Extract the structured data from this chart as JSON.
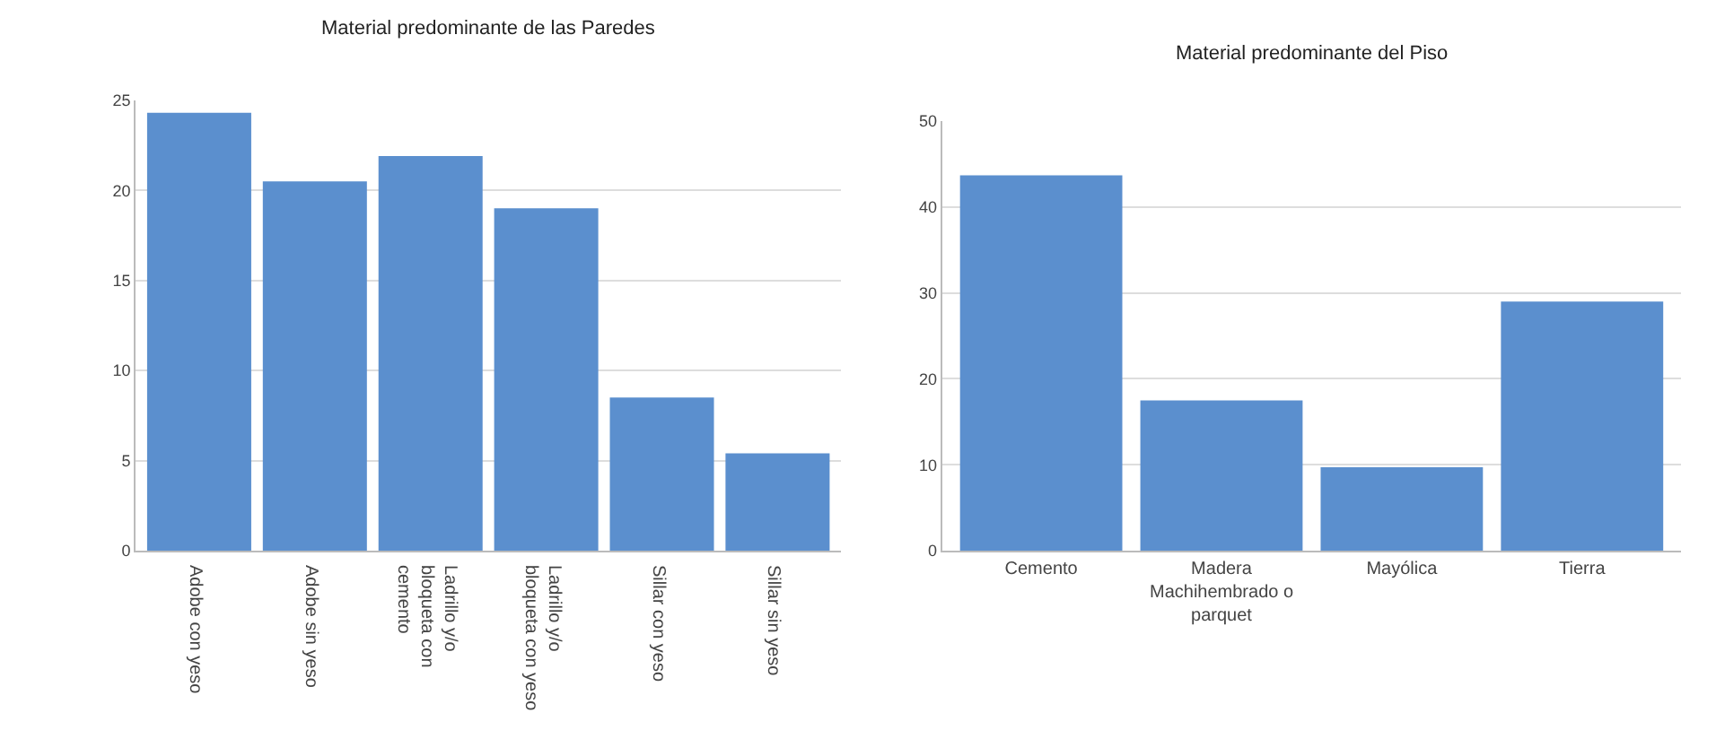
{
  "chart_data": [
    {
      "type": "bar",
      "title": "Material predominante de las Paredes",
      "categories": [
        "Adobe con yeso",
        "Adobe sin yeso",
        "Ladrillo y/o bloqueta con cemento",
        "Ladrillo y/o bloqueta con yeso",
        "Sillar con yeso",
        "Sillar sin yeso"
      ],
      "values": [
        24.3,
        20.5,
        21.9,
        19.0,
        8.5,
        5.4
      ],
      "color": "#5b8fce",
      "ylim": [
        0,
        25
      ],
      "yticks": [
        0,
        5,
        10,
        15,
        20,
        25
      ],
      "grid": "y"
    },
    {
      "type": "bar",
      "title": "Material predominante del Piso",
      "categories": [
        "Cemento",
        "Madera Machihembrado o parquet",
        "Mayólica",
        "Tierra"
      ],
      "values": [
        43.7,
        17.5,
        9.7,
        29.0
      ],
      "color": "#5b8fce",
      "ylim": [
        0,
        50
      ],
      "yticks": [
        0,
        10,
        20,
        30,
        40,
        50
      ],
      "grid": "y"
    }
  ]
}
